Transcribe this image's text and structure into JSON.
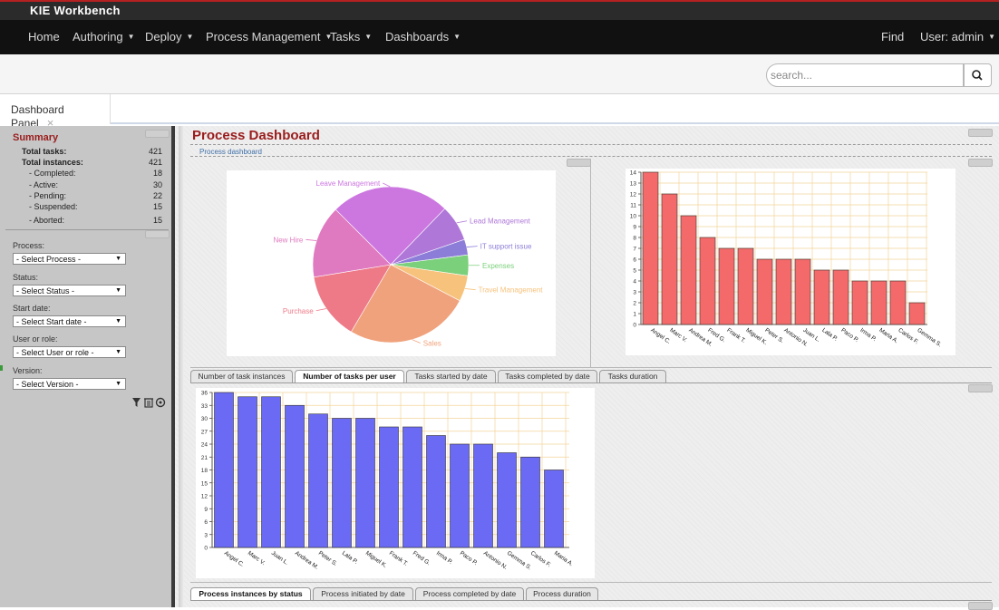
{
  "app": {
    "brand": "KIE Workbench",
    "nav_items": [
      "Home",
      "Authoring",
      "Deploy",
      "Process Management",
      "Tasks",
      "Dashboards"
    ],
    "find": "Find",
    "user": "User: admin"
  },
  "search": {
    "placeholder": "search..."
  },
  "panel_tab": {
    "label": "Dashboard Panel",
    "close": "×"
  },
  "sidebar": {
    "title": "Summary",
    "rows": [
      {
        "label": "Total tasks:",
        "value": "421"
      },
      {
        "label": "Total instances:",
        "value": "421"
      },
      {
        "label": "- Completed:",
        "value": "18"
      },
      {
        "label": "- Active:",
        "value": "30"
      },
      {
        "label": "- Pending:",
        "value": "22"
      },
      {
        "label": "- Suspended:",
        "value": "15"
      },
      {
        "label": "- Aborted:",
        "value": "15"
      }
    ],
    "filters": [
      {
        "label": "Process:",
        "value": "- Select Process -"
      },
      {
        "label": "Status:",
        "value": "- Select Status -"
      },
      {
        "label": "Start date:",
        "value": "- Select Start date -"
      },
      {
        "label": "User or role:",
        "value": "- Select User or role -"
      },
      {
        "label": "Version:",
        "value": "- Select Version -"
      }
    ]
  },
  "main": {
    "title": "Process Dashboard",
    "subtitle": "Process dashboard",
    "tabs_middle": [
      "Number of task instances",
      "Number of tasks per user",
      "Tasks started by date",
      "Tasks completed by date",
      "Tasks duration"
    ],
    "tabs_middle_active": 1,
    "tabs_bottom": [
      "Process instances by status",
      "Process initiated by date",
      "Process completed by date",
      "Process duration"
    ],
    "tabs_bottom_active": 0
  },
  "chart_data": [
    {
      "type": "pie",
      "categories": [
        "Leave Management",
        "Lead Management",
        "IT support issue",
        "Expenses",
        "Travel Management",
        "Sales",
        "Purchase",
        "New Hire"
      ],
      "values": [
        23,
        7,
        3,
        4,
        5,
        24,
        13,
        14
      ],
      "colors": [
        "#cc77e0",
        "#ae77d8",
        "#8c7ed8",
        "#7bd07b",
        "#f7c27c",
        "#f0a27c",
        "#ee7a88",
        "#e07ac0"
      ]
    },
    {
      "type": "bar",
      "categories": [
        "Angel C.",
        "Marc V.",
        "Andrea M.",
        "Fred G.",
        "Frank T.",
        "Miguel K.",
        "Peter S.",
        "Antonio N.",
        "Juan L.",
        "Lala P.",
        "Paco P.",
        "Irma P.",
        "Maria A.",
        "Carlos F.",
        "Gemma S."
      ],
      "values": [
        14,
        12,
        10,
        8,
        7,
        7,
        6,
        6,
        6,
        5,
        5,
        4,
        4,
        4,
        2
      ],
      "ylim": [
        0,
        14
      ],
      "yticks": [
        0,
        1,
        2,
        3,
        4,
        5,
        6,
        7,
        8,
        9,
        10,
        11,
        12,
        13,
        14
      ],
      "grid": true,
      "color": "#f46a6a"
    },
    {
      "type": "bar",
      "categories": [
        "Angel C.",
        "Marc V.",
        "Juan L.",
        "Andrea M.",
        "Peter S.",
        "Lala P.",
        "Miguel K.",
        "Frank T.",
        "Fred G.",
        "Irma P.",
        "Paco P.",
        "Antonio N.",
        "Gemma S.",
        "Carlos F.",
        "Maria A."
      ],
      "values": [
        36,
        35,
        35,
        33,
        31,
        30,
        30,
        28,
        28,
        26,
        24,
        24,
        22,
        21,
        18
      ],
      "ylim": [
        0,
        36
      ],
      "yticks": [
        0,
        3,
        6,
        9,
        12,
        15,
        18,
        21,
        24,
        27,
        30,
        33,
        36
      ],
      "grid": true,
      "color": "#6a6af4"
    }
  ]
}
